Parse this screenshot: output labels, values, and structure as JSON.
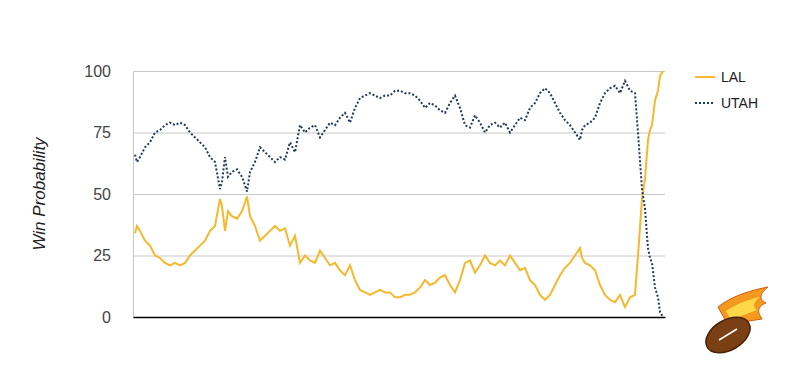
{
  "chart_data": {
    "type": "line",
    "y_label": "Win Probability",
    "x": [
      2,
      4,
      7,
      12,
      17,
      22,
      27,
      32,
      37,
      42,
      47,
      52,
      57,
      62,
      67,
      72,
      77,
      82,
      87,
      89,
      92,
      95,
      99,
      104,
      109,
      114,
      117,
      122,
      127,
      132,
      137,
      142,
      147,
      152,
      157,
      162,
      167,
      172,
      177,
      182,
      187,
      192,
      197,
      202,
      207,
      212,
      217,
      222,
      227,
      232,
      237,
      242,
      247,
      252,
      257,
      262,
      267,
      272,
      277,
      282,
      287,
      292,
      297,
      302,
      307,
      312,
      317,
      322,
      327,
      332,
      337,
      342,
      347,
      352,
      357,
      362,
      367,
      372,
      377,
      382,
      387,
      392,
      397,
      402,
      407,
      412,
      417,
      422,
      427,
      432,
      437,
      442,
      447,
      449,
      452,
      457,
      462,
      467,
      472,
      477,
      482,
      487,
      492,
      497,
      502,
      505,
      509,
      512,
      515,
      517,
      519,
      522,
      525,
      527,
      530
    ],
    "series": [
      {
        "name": "LAL",
        "color": "#f5b82e",
        "line_style": "solid",
        "values": [
          34,
          37,
          35,
          31,
          29,
          25,
          24,
          22,
          21,
          22,
          21,
          22,
          25,
          27,
          29,
          31,
          35,
          37,
          48,
          45,
          35,
          43,
          41,
          40,
          43,
          49,
          41,
          37,
          31,
          33,
          35,
          37,
          35,
          36,
          29,
          33,
          22,
          25,
          23,
          22,
          27,
          24,
          21,
          22,
          19,
          17,
          21,
          15,
          11,
          10,
          9,
          10,
          11,
          10,
          10,
          8,
          8,
          9,
          9,
          10,
          12,
          15,
          13,
          14,
          16,
          17,
          13,
          10,
          15,
          22,
          23,
          18,
          21,
          25,
          22,
          21,
          23,
          21,
          25,
          22,
          19,
          20,
          15,
          13,
          9,
          7,
          9,
          13,
          17,
          20,
          22,
          25,
          28,
          24,
          22,
          21,
          19,
          13,
          9,
          7,
          6,
          9,
          4,
          8,
          9,
          25,
          48,
          56,
          72,
          76,
          78,
          88,
          92,
          98,
          100
        ]
      },
      {
        "name": "UTAH",
        "color": "#22385e",
        "line_style": "dotted",
        "values": [
          66,
          63,
          65,
          69,
          71,
          75,
          76,
          78,
          79,
          78,
          79,
          78,
          75,
          73,
          71,
          69,
          65,
          63,
          52,
          55,
          65,
          57,
          59,
          60,
          57,
          51,
          59,
          63,
          69,
          67,
          65,
          63,
          65,
          64,
          71,
          67,
          78,
          75,
          77,
          78,
          73,
          76,
          79,
          78,
          81,
          83,
          79,
          85,
          89,
          90,
          91,
          90,
          89,
          90,
          90,
          92,
          92,
          91,
          91,
          90,
          88,
          85,
          87,
          86,
          84,
          83,
          87,
          90,
          85,
          78,
          77,
          82,
          79,
          75,
          78,
          79,
          77,
          79,
          75,
          78,
          81,
          80,
          85,
          87,
          91,
          93,
          91,
          87,
          83,
          80,
          78,
          75,
          72,
          76,
          78,
          79,
          81,
          87,
          91,
          93,
          94,
          91,
          96,
          92,
          91,
          75,
          52,
          44,
          28,
          24,
          22,
          12,
          8,
          2,
          0
        ]
      }
    ],
    "xlim": [
      0,
      532
    ],
    "xticks": [],
    "ylim": [
      0,
      100
    ],
    "yticks": [
      0,
      25,
      50,
      75,
      100
    ],
    "grid": true,
    "legend": "right",
    "tick_labels": "y"
  }
}
